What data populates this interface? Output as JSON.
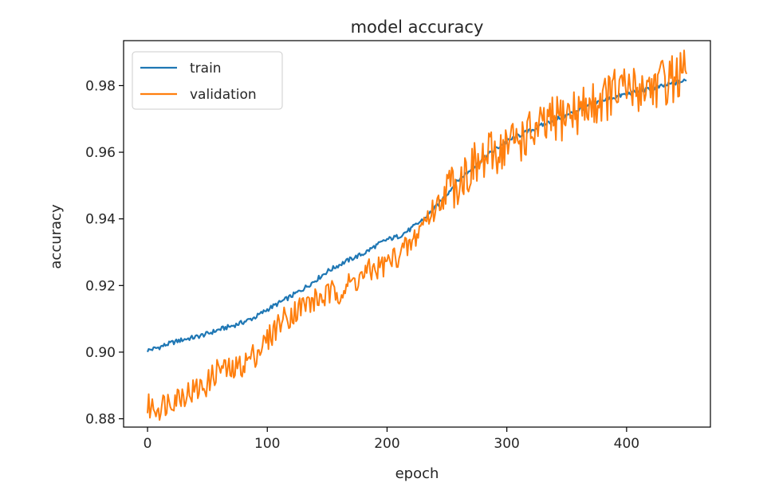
{
  "chart_data": {
    "type": "line",
    "title": "model accuracy",
    "xlabel": "epoch",
    "ylabel": "accuracy",
    "xlim": [
      -20,
      470
    ],
    "ylim": [
      0.8775,
      0.9935
    ],
    "xticks": [
      0,
      100,
      200,
      300,
      400
    ],
    "xtick_labels": [
      "0",
      "100",
      "200",
      "300",
      "400"
    ],
    "yticks": [
      0.88,
      0.9,
      0.92,
      0.94,
      0.96,
      0.98
    ],
    "ytick_labels": [
      "0.88",
      "0.90",
      "0.92",
      "0.94",
      "0.96",
      "0.98"
    ],
    "grid": false,
    "legend_position": "upper-left",
    "series": [
      {
        "name": "train",
        "color": "#1f77b4",
        "x": [
          0,
          10,
          20,
          30,
          40,
          50,
          60,
          70,
          80,
          90,
          100,
          110,
          120,
          130,
          140,
          150,
          160,
          170,
          180,
          190,
          200,
          210,
          220,
          230,
          240,
          250,
          260,
          270,
          280,
          290,
          300,
          310,
          320,
          330,
          340,
          350,
          360,
          370,
          380,
          390,
          400,
          410,
          420,
          430,
          440,
          450
        ],
        "values": [
          0.9005,
          0.9015,
          0.9028,
          0.9038,
          0.9045,
          0.9055,
          0.9068,
          0.9078,
          0.909,
          0.9105,
          0.9128,
          0.9148,
          0.9168,
          0.919,
          0.9215,
          0.9242,
          0.9262,
          0.928,
          0.9295,
          0.9318,
          0.9338,
          0.9348,
          0.937,
          0.9398,
          0.9432,
          0.9475,
          0.9518,
          0.9548,
          0.958,
          0.9608,
          0.9632,
          0.965,
          0.9665,
          0.9682,
          0.9698,
          0.971,
          0.9728,
          0.9742,
          0.9755,
          0.9765,
          0.9775,
          0.9782,
          0.979,
          0.9798,
          0.9808,
          0.9815
        ]
      },
      {
        "name": "validation",
        "color": "#ff7f0e",
        "x": [
          0,
          10,
          20,
          30,
          40,
          50,
          60,
          70,
          80,
          90,
          100,
          110,
          120,
          130,
          140,
          150,
          160,
          170,
          180,
          190,
          200,
          210,
          220,
          230,
          240,
          250,
          260,
          270,
          280,
          290,
          300,
          310,
          320,
          330,
          340,
          350,
          360,
          370,
          380,
          390,
          400,
          410,
          420,
          430,
          440,
          450
        ],
        "values": [
          0.8835,
          0.8835,
          0.886,
          0.8875,
          0.8885,
          0.8905,
          0.8955,
          0.894,
          0.8965,
          0.8995,
          0.9035,
          0.909,
          0.9115,
          0.914,
          0.9155,
          0.917,
          0.9185,
          0.9205,
          0.923,
          0.925,
          0.9265,
          0.9295,
          0.932,
          0.939,
          0.943,
          0.9485,
          0.952,
          0.955,
          0.957,
          0.96,
          0.962,
          0.964,
          0.9655,
          0.967,
          0.9695,
          0.9715,
          0.9725,
          0.974,
          0.976,
          0.978,
          0.9785,
          0.979,
          0.98,
          0.981,
          0.9825,
          0.9835
        ]
      }
    ]
  }
}
